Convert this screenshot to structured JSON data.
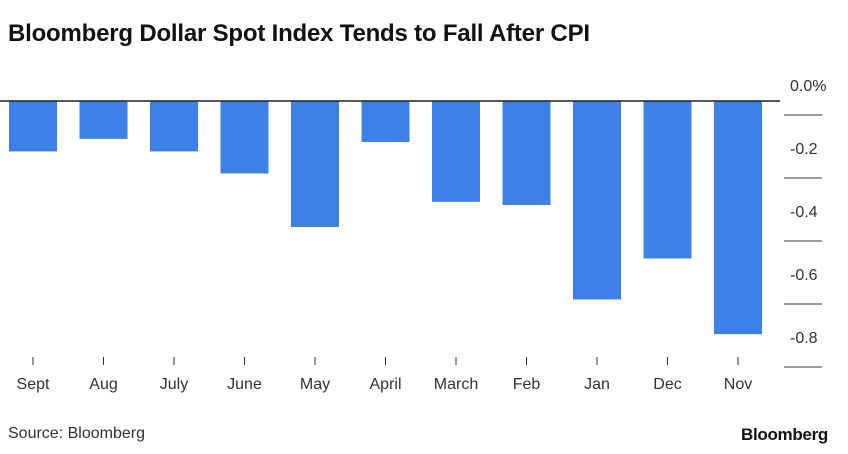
{
  "header": {
    "title": "Bloomberg Dollar Spot Index Tends to Fall After CPI"
  },
  "footer": {
    "source": "Source: Bloomberg",
    "logo_text": "Bloomberg"
  },
  "chart_data": {
    "type": "bar",
    "title": "Bloomberg Dollar Spot Index Tends to Fall After CPI",
    "categories": [
      "Sept",
      "Aug",
      "July",
      "June",
      "May",
      "April",
      "March",
      "Feb",
      "Jan",
      "Dec",
      "Nov"
    ],
    "values": [
      -0.16,
      -0.12,
      -0.16,
      -0.23,
      -0.4,
      -0.13,
      -0.32,
      -0.33,
      -0.63,
      -0.5,
      -0.74
    ],
    "ylim": [
      -0.8,
      0.0
    ],
    "yticks": [
      0.0,
      -0.2,
      -0.4,
      -0.6,
      -0.8
    ],
    "ytick_labels": [
      "0.0%",
      "-0.2",
      "-0.4",
      "-0.6",
      "-0.8"
    ],
    "y_axis_position": "right",
    "grid": false,
    "bar_color": "#3d80e6"
  }
}
